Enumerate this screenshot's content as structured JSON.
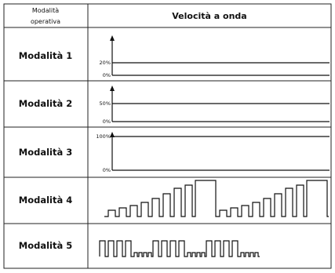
{
  "header": {
    "col1": "Modalità operativa",
    "col2": "Velocità a onda"
  },
  "rows": [
    {
      "label": "Modalità 1",
      "ticks": [
        "20%",
        "0%"
      ]
    },
    {
      "label": "Modalità 2",
      "ticks": [
        "50%",
        "0%"
      ]
    },
    {
      "label": "Modalità 3",
      "ticks": [
        "100%",
        "0%"
      ]
    },
    {
      "label": "Modalità 4"
    },
    {
      "label": "Modalità 5"
    }
  ]
}
